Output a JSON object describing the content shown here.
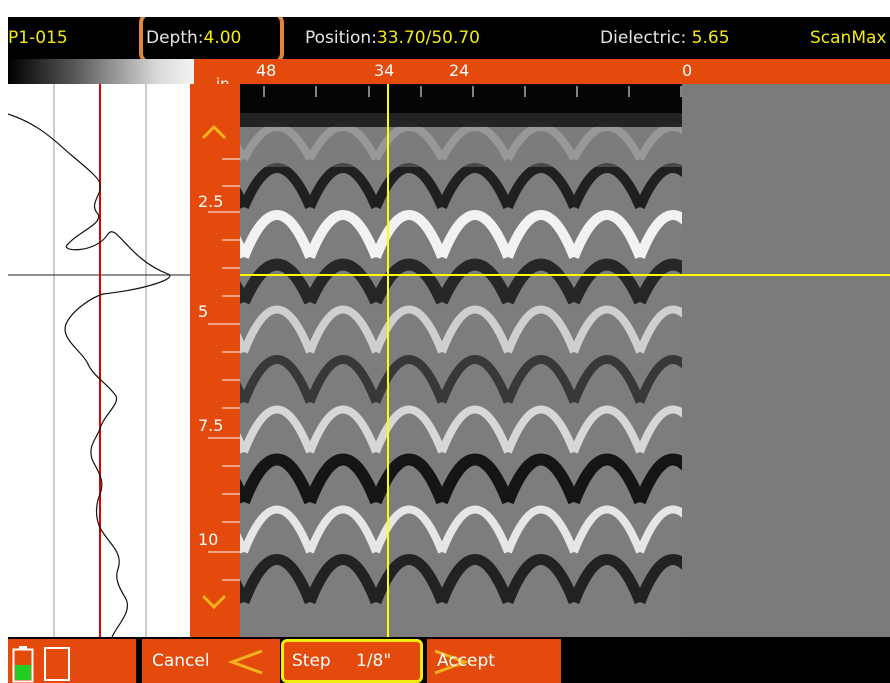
{
  "header": {
    "scan_id": "P1-015",
    "depth_label": "Depth:",
    "depth_value": "4.00",
    "position_label": "Position:",
    "position_value": "33.70/50.70",
    "dielectric_label": "Dielectric:",
    "dielectric_value": "5.65",
    "mode": "ScanMax"
  },
  "distance_scale": {
    "ticks": [
      "48",
      "34",
      "24",
      "0"
    ],
    "unit": "in"
  },
  "depth_scale": {
    "labels": [
      "2.5",
      "5",
      "7.5",
      "10"
    ]
  },
  "footer": {
    "cancel_label": "Cancel",
    "step_label": "Step",
    "step_value": "1/8\"",
    "accept_label": "Accept"
  },
  "icons": {
    "battery": "battery-icon",
    "storage": "sd-card-icon",
    "scroll_up": "chevron-up-icon",
    "scroll_down": "chevron-down-icon",
    "prev": "chevron-left-icon",
    "next": "chevron-right-icon"
  },
  "colors": {
    "accent": "#e34a0b",
    "value_text": "#f2ea13",
    "cursor": "#ffff00",
    "trace_marker": "#e00000",
    "highlight": "#e2843c",
    "battery_fill": "#22cc22"
  }
}
